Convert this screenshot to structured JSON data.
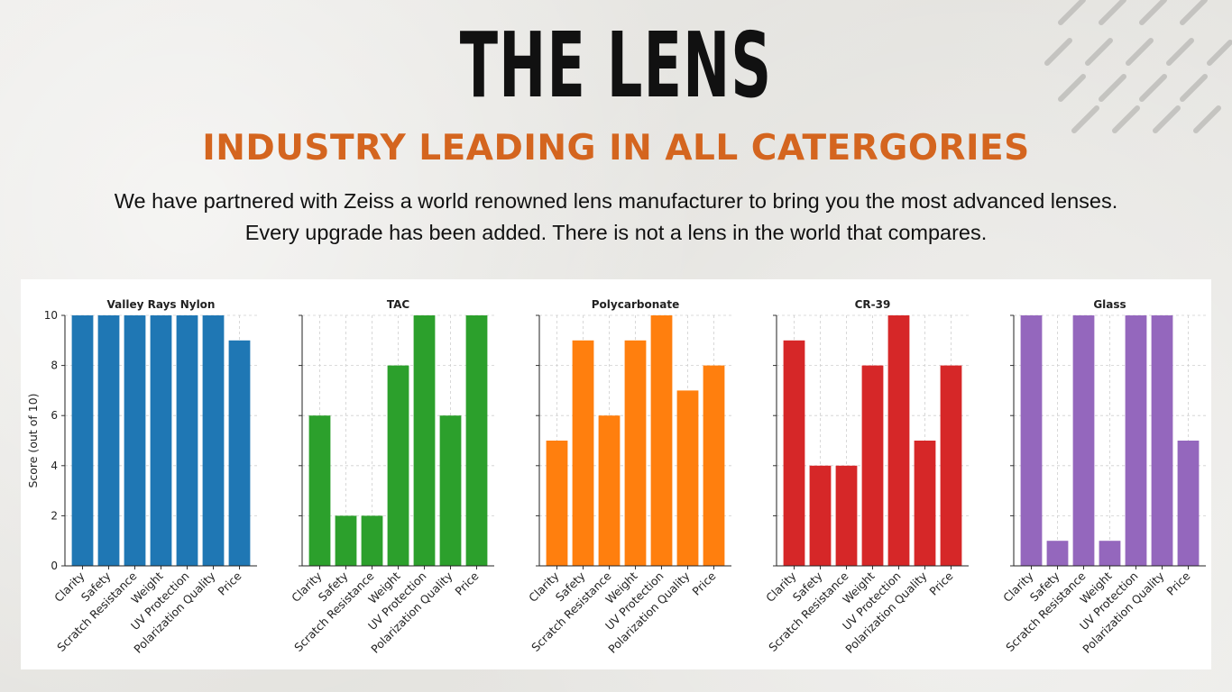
{
  "header": {
    "title": "THE LENS",
    "subtitle": "INDUSTRY LEADING IN ALL CATERGORIES",
    "description_line1": "We have partnered with Zeiss a world renowned lens manufacturer to bring you the most advanced lenses.",
    "description_line2": "Every upgrade has been added. There is not a lens in the world that compares."
  },
  "colors": {
    "title": "#111111",
    "subtitle": "#d4651f",
    "blue": "#1f77b4",
    "green": "#2ca02c",
    "orange": "#ff7f0e",
    "red": "#d62728",
    "purple": "#9467bd"
  },
  "chart_data": [
    {
      "type": "bar",
      "title": "Valley Rays Nylon",
      "categories": [
        "Clarity",
        "Safety",
        "Scratch Resistance",
        "Weight",
        "UV Protection",
        "Polarization Quality",
        "Price"
      ],
      "values": [
        10,
        10,
        10,
        10,
        10,
        10,
        9
      ],
      "ylabel": "Score (out of 10)",
      "ylim": [
        0,
        10
      ],
      "yticks": [
        "0",
        "2",
        "4",
        "6",
        "8",
        "10"
      ],
      "color": "#1f77b4",
      "grid": true
    },
    {
      "type": "bar",
      "title": "TAC",
      "categories": [
        "Clarity",
        "Safety",
        "Scratch Resistance",
        "Weight",
        "UV Protection",
        "Polarization Quality",
        "Price"
      ],
      "values": [
        6,
        2,
        2,
        8,
        10,
        6,
        10
      ],
      "ylim": [
        0,
        10
      ],
      "color": "#2ca02c",
      "grid": true
    },
    {
      "type": "bar",
      "title": "Polycarbonate",
      "categories": [
        "Clarity",
        "Safety",
        "Scratch Resistance",
        "Weight",
        "UV Protection",
        "Polarization Quality",
        "Price"
      ],
      "values": [
        5,
        9,
        6,
        9,
        10,
        7,
        8
      ],
      "ylim": [
        0,
        10
      ],
      "color": "#ff7f0e",
      "grid": true
    },
    {
      "type": "bar",
      "title": "CR-39",
      "categories": [
        "Clarity",
        "Safety",
        "Scratch Resistance",
        "Weight",
        "UV Protection",
        "Polarization Quality",
        "Price"
      ],
      "values": [
        9,
        4,
        4,
        8,
        10,
        5,
        8
      ],
      "ylim": [
        0,
        10
      ],
      "color": "#d62728",
      "grid": true
    },
    {
      "type": "bar",
      "title": "Glass",
      "categories": [
        "Clarity",
        "Safety",
        "Scratch Resistance",
        "Weight",
        "UV Protection",
        "Polarization Quality",
        "Price"
      ],
      "values": [
        10,
        1,
        10,
        1,
        10,
        10,
        5
      ],
      "ylim": [
        0,
        10
      ],
      "color": "#9467bd",
      "grid": true
    }
  ]
}
